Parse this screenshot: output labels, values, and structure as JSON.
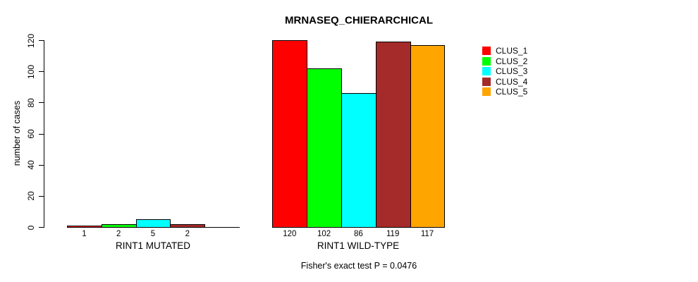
{
  "chart_data": {
    "type": "bar",
    "title": "MRNASEQ_CHIERARCHICAL",
    "ylabel": "number of cases",
    "xlabel": "",
    "ylim": [
      0,
      120
    ],
    "yticks": [
      0,
      20,
      40,
      60,
      80,
      100,
      120
    ],
    "grid": false,
    "legend_position": "right-outside",
    "categories": [
      "RINT1 MUTATED",
      "RINT1 WILD-TYPE"
    ],
    "series": [
      {
        "name": "CLUS_1",
        "color": "#ff0000",
        "values": [
          1,
          120
        ]
      },
      {
        "name": "CLUS_2",
        "color": "#00ff00",
        "values": [
          2,
          102
        ]
      },
      {
        "name": "CLUS_3",
        "color": "#00ffff",
        "values": [
          5,
          86
        ]
      },
      {
        "name": "CLUS_4",
        "color": "#a52a2a",
        "values": [
          2,
          119
        ]
      },
      {
        "name": "CLUS_5",
        "color": "#ffa500",
        "values": [
          0,
          117
        ]
      }
    ],
    "bar_value_labels": [
      [
        "1",
        "2",
        "5",
        "2",
        ""
      ],
      [
        "120",
        "102",
        "86",
        "119",
        "117"
      ]
    ],
    "annotation": "Fisher's exact test P = 0.0476",
    "bar_border_color": "#000000",
    "axis_color": "#000000"
  }
}
